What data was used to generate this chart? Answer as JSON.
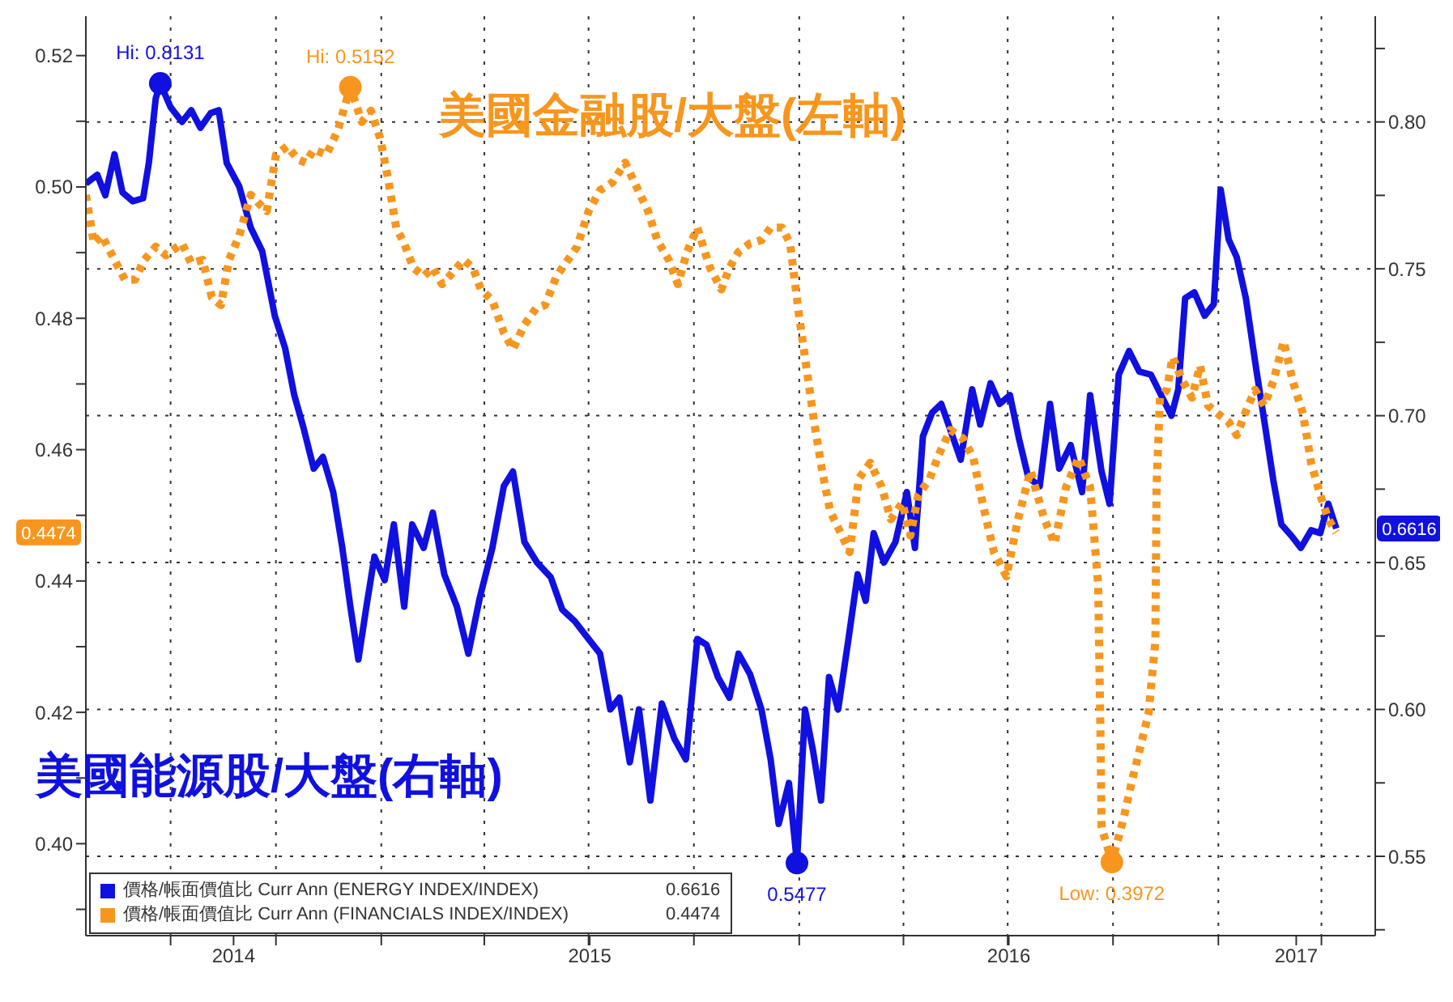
{
  "chart_data": {
    "type": "line",
    "xlim": [
      "2014-04-18",
      "2017-05-18"
    ],
    "xticks": [
      {
        "value": "2014-07-01",
        "label": null
      },
      {
        "value": "2014-08-25",
        "label": "2014"
      },
      {
        "value": "2014-10-01",
        "label": null
      },
      {
        "value": "2015-01-01",
        "label": null
      },
      {
        "value": "2015-04-01",
        "label": null
      },
      {
        "value": "2015-07-02",
        "label": "2015"
      },
      {
        "value": "2015-07-01",
        "label": null
      },
      {
        "value": "2015-10-01",
        "label": null
      },
      {
        "value": "2016-01-01",
        "label": null
      },
      {
        "value": "2016-04-01",
        "label": null
      },
      {
        "value": "2016-07-02",
        "label": "2016"
      },
      {
        "value": "2016-07-01",
        "label": null
      },
      {
        "value": "2016-10-01",
        "label": null
      },
      {
        "value": "2017-01-01",
        "label": null
      },
      {
        "value": "2017-03-10",
        "label": "2017"
      },
      {
        "value": "2017-04-01",
        "label": null
      }
    ],
    "ylim": [
      0.386,
      0.526
    ],
    "yticks": [
      0.52,
      {
        "value": 0.51,
        "label": null
      },
      {
        "value": 0.5,
        "label": "0.50"
      },
      {
        "value": 0.49,
        "label": null
      },
      0.48,
      {
        "value": 0.47,
        "label": null
      },
      0.46,
      {
        "value": 0.45,
        "label": null
      },
      0.44,
      {
        "value": 0.43,
        "label": null
      },
      0.42,
      {
        "value": 0.41,
        "label": null
      },
      {
        "value": 0.4,
        "label": "0.40"
      },
      {
        "value": 0.39,
        "label": null
      }
    ],
    "y2lim": [
      0.523,
      0.836
    ],
    "y2ticks": [
      {
        "value": 0.825,
        "label": null
      },
      {
        "value": 0.8,
        "label": "0.80"
      },
      {
        "value": 0.775,
        "label": null
      },
      0.75,
      {
        "value": 0.725,
        "label": null
      },
      {
        "value": 0.7,
        "label": "0.70"
      },
      {
        "value": 0.675,
        "label": null
      },
      0.65,
      {
        "value": 0.625,
        "label": null
      },
      {
        "value": 0.6,
        "label": "0.60"
      },
      {
        "value": 0.575,
        "label": null
      },
      0.55,
      {
        "value": 0.525,
        "label": null
      }
    ],
    "grid": true,
    "legend": "bottom left",
    "annotations": [
      "美國能源股/大盤(右軸)",
      "美國金融股/大盤(左軸)",
      "Hi: 0.8131",
      "Hi: 0.5152",
      "0.5477",
      "Low: 0.3972",
      "0.6616",
      "0.4474"
    ],
    "series": [
      {
        "name": "價格/帳面價值比 Curr Ann (ENERGY INDEX/INDEX)",
        "color": "#1010e0",
        "axis": "y2",
        "line_style": "solid",
        "x": [
          "2014-04-18",
          "2014-04-28",
          "2014-05-05",
          "2014-05-13",
          "2014-05-20",
          "2014-05-29",
          "2014-06-07",
          "2014-06-12",
          "2014-06-18",
          "2014-06-22",
          "2014-07-01",
          "2014-07-11",
          "2014-07-19",
          "2014-07-27",
          "2014-08-05",
          "2014-08-12",
          "2014-08-19",
          "2014-08-30",
          "2014-09-09",
          "2014-09-19",
          "2014-09-30",
          "2014-10-09",
          "2014-10-17",
          "2014-10-25",
          "2014-11-03",
          "2014-11-11",
          "2014-11-20",
          "2014-11-28",
          "2014-12-05",
          "2014-12-12",
          "2014-12-19",
          "2014-12-26",
          "2015-01-04",
          "2015-01-12",
          "2015-01-21",
          "2015-01-28",
          "2015-02-07",
          "2015-02-15",
          "2015-02-25",
          "2015-03-08",
          "2015-03-18",
          "2015-03-28",
          "2015-04-08",
          "2015-04-18",
          "2015-04-26",
          "2015-05-06",
          "2015-05-17",
          "2015-05-29",
          "2015-06-08",
          "2015-06-19",
          "2015-07-01",
          "2015-07-11",
          "2015-07-20",
          "2015-07-28",
          "2015-08-06",
          "2015-08-14",
          "2015-08-24",
          "2015-09-03",
          "2015-09-14",
          "2015-09-24",
          "2015-10-04",
          "2015-10-12",
          "2015-10-22",
          "2015-11-01",
          "2015-11-09",
          "2015-11-19",
          "2015-11-29",
          "2015-12-07",
          "2015-12-14",
          "2015-12-23",
          "2015-12-30",
          "2016-01-06",
          "2016-01-13",
          "2016-01-20",
          "2016-01-27",
          "2016-02-04",
          "2016-02-13",
          "2016-02-21",
          "2016-02-28",
          "2016-03-06",
          "2016-03-15",
          "2016-03-25",
          "2016-04-04",
          "2016-04-11",
          "2016-04-18",
          "2016-04-26",
          "2016-05-04",
          "2016-05-13",
          "2016-05-21",
          "2016-05-31",
          "2016-06-07",
          "2016-06-16",
          "2016-06-24",
          "2016-07-03",
          "2016-07-11",
          "2016-07-19",
          "2016-07-29",
          "2016-08-07",
          "2016-08-15",
          "2016-08-25",
          "2016-09-04",
          "2016-09-11",
          "2016-09-21",
          "2016-09-28",
          "2016-10-06",
          "2016-10-15",
          "2016-10-24",
          "2016-11-03",
          "2016-11-12",
          "2016-11-21",
          "2016-11-27",
          "2016-12-03",
          "2016-12-11",
          "2016-12-20",
          "2016-12-28",
          "2017-01-03",
          "2017-01-10",
          "2017-01-17",
          "2017-01-25",
          "2017-02-03",
          "2017-02-11",
          "2017-02-18",
          "2017-02-25",
          "2017-03-06",
          "2017-03-14",
          "2017-03-23",
          "2017-03-31",
          "2017-04-07",
          "2017-04-14"
        ],
        "values": [
          0.779,
          0.782,
          0.775,
          0.789,
          0.776,
          0.773,
          0.774,
          0.786,
          0.808,
          0.8131,
          0.805,
          0.8,
          0.804,
          0.798,
          0.803,
          0.804,
          0.786,
          0.778,
          0.764,
          0.756,
          0.734,
          0.723,
          0.707,
          0.696,
          0.682,
          0.686,
          0.674,
          0.655,
          0.635,
          0.617,
          0.635,
          0.652,
          0.644,
          0.663,
          0.635,
          0.663,
          0.655,
          0.667,
          0.646,
          0.635,
          0.619,
          0.638,
          0.655,
          0.676,
          0.681,
          0.657,
          0.65,
          0.645,
          0.634,
          0.63,
          0.624,
          0.619,
          0.6,
          0.604,
          0.582,
          0.6,
          0.569,
          0.602,
          0.59,
          0.583,
          0.624,
          0.622,
          0.611,
          0.604,
          0.619,
          0.612,
          0.6,
          0.583,
          0.561,
          0.575,
          0.5477,
          0.6,
          0.586,
          0.569,
          0.611,
          0.6,
          0.624,
          0.646,
          0.637,
          0.66,
          0.65,
          0.657,
          0.674,
          0.655,
          0.693,
          0.701,
          0.704,
          0.694,
          0.685,
          0.709,
          0.697,
          0.711,
          0.704,
          0.707,
          0.692,
          0.679,
          0.676,
          0.704,
          0.682,
          0.69,
          0.674,
          0.707,
          0.681,
          0.67,
          0.714,
          0.722,
          0.715,
          0.714,
          0.707,
          0.7,
          0.709,
          0.74,
          0.742,
          0.734,
          0.738,
          0.777,
          0.76,
          0.754,
          0.74,
          0.716,
          0.696,
          0.678,
          0.663,
          0.659,
          0.655,
          0.661,
          0.66,
          0.67,
          0.6616
        ]
      },
      {
        "name": "價格/帳面價值比 Curr Ann (FINANCIALS INDEX/INDEX)",
        "color": "#f7961e",
        "line_style": "dotted",
        "x": [
          "2014-04-18",
          "2014-04-25",
          "2014-05-02",
          "2014-05-13",
          "2014-05-22",
          "2014-05-31",
          "2014-06-08",
          "2014-06-18",
          "2014-06-27",
          "2014-07-11",
          "2014-07-19",
          "2014-07-29",
          "2014-08-06",
          "2014-08-14",
          "2014-08-21",
          "2014-08-30",
          "2014-09-09",
          "2014-09-16",
          "2014-09-23",
          "2014-10-01",
          "2014-10-11",
          "2014-10-20",
          "2014-10-27",
          "2014-11-03",
          "2014-11-14",
          "2014-11-24",
          "2014-12-05",
          "2014-12-15",
          "2014-12-23",
          "2014-12-31",
          "2015-01-07",
          "2015-01-14",
          "2015-01-21",
          "2015-01-29",
          "2015-02-07",
          "2015-02-15",
          "2015-02-23",
          "2015-03-04",
          "2015-03-14",
          "2015-03-22",
          "2015-03-29",
          "2015-04-08",
          "2015-04-18",
          "2015-04-26",
          "2015-05-06",
          "2015-05-16",
          "2015-05-24",
          "2015-06-03",
          "2015-06-13",
          "2015-06-21",
          "2015-07-01",
          "2015-07-11",
          "2015-07-22",
          "2015-08-02",
          "2015-08-12",
          "2015-08-22",
          "2015-08-30",
          "2015-09-09",
          "2015-09-17",
          "2015-09-25",
          "2015-10-04",
          "2015-10-15",
          "2015-10-25",
          "2015-11-01",
          "2015-11-09",
          "2015-11-19",
          "2015-11-29",
          "2015-12-07",
          "2015-12-17",
          "2015-12-24",
          "2016-01-01",
          "2016-01-08",
          "2016-01-14",
          "2016-01-21",
          "2016-01-28",
          "2016-02-04",
          "2016-02-14",
          "2016-02-22",
          "2016-03-03",
          "2016-03-13",
          "2016-03-21",
          "2016-03-31",
          "2016-04-07",
          "2016-04-14",
          "2016-04-24",
          "2016-05-02",
          "2016-05-12",
          "2016-05-23",
          "2016-06-01",
          "2016-06-09",
          "2016-06-19",
          "2016-06-30",
          "2016-07-10",
          "2016-07-21",
          "2016-08-02",
          "2016-08-11",
          "2016-08-21",
          "2016-09-01",
          "2016-09-11",
          "2016-09-18",
          "2016-09-20",
          "2016-09-21",
          "2016-09-30",
          "2016-10-10",
          "2016-10-18",
          "2016-10-25",
          "2016-11-01",
          "2016-11-07",
          "2016-11-08",
          "2016-11-11",
          "2016-11-17",
          "2016-11-22",
          "2016-12-01",
          "2016-12-09",
          "2016-12-16",
          "2016-12-23",
          "2017-01-01",
          "2017-01-10",
          "2017-01-17",
          "2017-01-24",
          "2017-02-02",
          "2017-02-10",
          "2017-02-18",
          "2017-02-27",
          "2017-03-07",
          "2017-03-16",
          "2017-03-23",
          "2017-03-31",
          "2017-04-07",
          "2017-04-14"
        ],
        "values": [
          0.4988,
          0.4914,
          0.4926,
          0.4889,
          0.4859,
          0.4859,
          0.4889,
          0.4909,
          0.4896,
          0.4914,
          0.4884,
          0.4889,
          0.4832,
          0.482,
          0.4889,
          0.4926,
          0.4988,
          0.4975,
          0.4963,
          0.5049,
          0.5062,
          0.5042,
          0.5037,
          0.5057,
          0.5049,
          0.5086,
          0.5152,
          0.5099,
          0.5116,
          0.5074,
          0.5012,
          0.4938,
          0.4914,
          0.4877,
          0.4864,
          0.4877,
          0.4852,
          0.4869,
          0.4889,
          0.4877,
          0.4844,
          0.4827,
          0.4778,
          0.4753,
          0.479,
          0.4815,
          0.482,
          0.4864,
          0.4889,
          0.4909,
          0.4963,
          0.4995,
          0.5007,
          0.5037,
          0.5,
          0.4963,
          0.4919,
          0.4889,
          0.4852,
          0.4901,
          0.4938,
          0.4877,
          0.4844,
          0.4877,
          0.4901,
          0.4914,
          0.4919,
          0.4938,
          0.4938,
          0.4914,
          0.4802,
          0.4716,
          0.4642,
          0.4568,
          0.4506,
          0.4481,
          0.4444,
          0.4556,
          0.458,
          0.4543,
          0.4494,
          0.4519,
          0.4469,
          0.4531,
          0.4556,
          0.4593,
          0.463,
          0.4617,
          0.4588,
          0.4519,
          0.4444,
          0.4407,
          0.4494,
          0.4568,
          0.4494,
          0.4457,
          0.4543,
          0.4588,
          0.4543,
          0.4395,
          0.4173,
          0.4025,
          0.3972,
          0.4037,
          0.4099,
          0.4148,
          0.4198,
          0.4309,
          0.4543,
          0.4679,
          0.4691,
          0.4741,
          0.4704,
          0.4679,
          0.4728,
          0.4667,
          0.4654,
          0.4642,
          0.4622,
          0.4654,
          0.4691,
          0.4667,
          0.4704,
          0.4765,
          0.4704,
          0.4654,
          0.458,
          0.4531,
          0.4494,
          0.4474
        ]
      }
    ]
  }
}
